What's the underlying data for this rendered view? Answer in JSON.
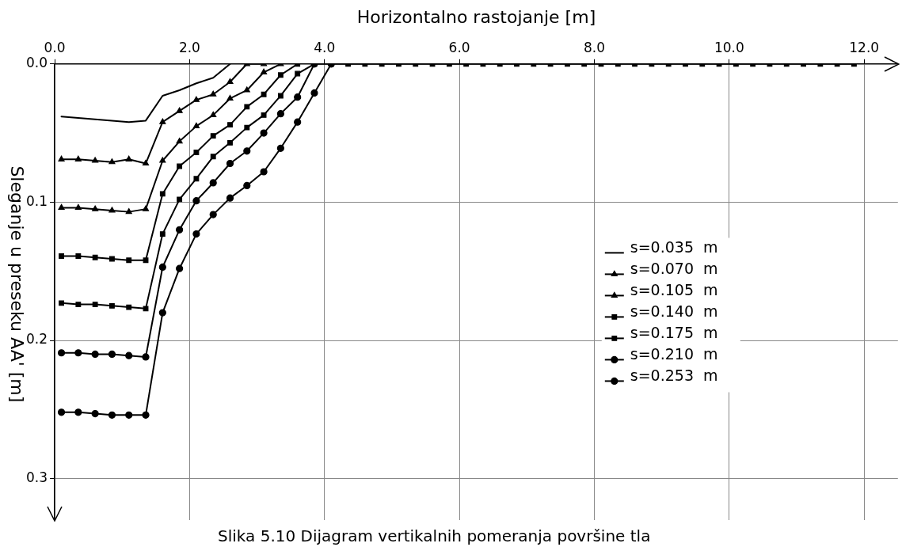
{
  "chart_data": {
    "type": "line",
    "xlabel": "Horizontalno rastojanje [m]",
    "ylabel": "Sleganje u preseku AA' [m]",
    "annotations": [
      "Slika 5.10 Dijagram vertikalnih pomeranja površine tla"
    ],
    "xlim": [
      0,
      12.5
    ],
    "ylim": [
      0.33,
      0
    ],
    "xticks": [
      {
        "value": 0,
        "label": "0.0"
      },
      {
        "value": 2,
        "label": "2.0"
      },
      {
        "value": 4,
        "label": "4.0"
      },
      {
        "value": 6,
        "label": "6.0"
      },
      {
        "value": 8,
        "label": "8.0"
      },
      {
        "value": 10,
        "label": "10.0"
      },
      {
        "value": 12,
        "label": "12.0"
      }
    ],
    "yticks": [
      {
        "value": 0,
        "label": "0.0"
      },
      {
        "value": 0.1,
        "label": "0.1"
      },
      {
        "value": 0.2,
        "label": "0.2"
      },
      {
        "value": 0.3,
        "label": "0.3"
      }
    ],
    "grid": true,
    "legend": "right",
    "line_style": "solid",
    "series": [
      {
        "name": "s=0.035  m",
        "color": "#000000",
        "marker": "none",
        "x": [
          0.1,
          0.35,
          0.6,
          0.85,
          1.1,
          1.35,
          1.6,
          1.85,
          2.1,
          2.35,
          2.6
        ],
        "values": [
          0.038,
          0.039,
          0.04,
          0.041,
          0.042,
          0.041,
          0.023,
          0.019,
          0.014,
          0.01,
          0
        ]
      },
      {
        "name": "s=0.070  m",
        "color": "#000000",
        "marker": "triangle",
        "x": [
          0.1,
          0.35,
          0.6,
          0.85,
          1.1,
          1.35,
          1.6,
          1.85,
          2.1,
          2.35,
          2.6,
          2.85,
          3.1
        ],
        "values": [
          0.069,
          0.069,
          0.07,
          0.071,
          0.069,
          0.072,
          0.042,
          0.034,
          0.026,
          0.022,
          0.013,
          0,
          0
        ]
      },
      {
        "name": "s=0.105  m",
        "color": "#000000",
        "marker": "triangle",
        "x": [
          0.1,
          0.35,
          0.6,
          0.85,
          1.1,
          1.35,
          1.6,
          1.85,
          2.1,
          2.35,
          2.6,
          2.85,
          3.1,
          3.35
        ],
        "values": [
          0.104,
          0.104,
          0.105,
          0.106,
          0.107,
          0.105,
          0.07,
          0.056,
          0.045,
          0.037,
          0.025,
          0.019,
          0.006,
          0
        ]
      },
      {
        "name": "s=0.140  m",
        "color": "#000000",
        "marker": "square",
        "x": [
          0.1,
          0.35,
          0.6,
          0.85,
          1.1,
          1.35,
          1.6,
          1.85,
          2.1,
          2.35,
          2.6,
          2.85,
          3.1,
          3.35,
          3.6
        ],
        "values": [
          0.139,
          0.139,
          0.14,
          0.141,
          0.142,
          0.142,
          0.094,
          0.074,
          0.064,
          0.052,
          0.044,
          0.031,
          0.022,
          0.008,
          0
        ]
      },
      {
        "name": "s=0.175  m",
        "color": "#000000",
        "marker": "square",
        "x": [
          0.1,
          0.35,
          0.6,
          0.85,
          1.1,
          1.35,
          1.6,
          1.85,
          2.1,
          2.35,
          2.6,
          2.85,
          3.1,
          3.35,
          3.6,
          3.85,
          4.1,
          4.35,
          4.6,
          4.85,
          5.1,
          5.35,
          5.6,
          5.85,
          6.1,
          6.35,
          6.6,
          6.85,
          7.1,
          7.35,
          7.6,
          7.85,
          8.1,
          8.35,
          8.6,
          8.85,
          9.1,
          9.35,
          9.6,
          9.85,
          10.1,
          10.35,
          10.6,
          10.85,
          11.1,
          11.35,
          11.6,
          11.85
        ],
        "values": [
          0.173,
          0.174,
          0.174,
          0.175,
          0.176,
          0.177,
          0.123,
          0.098,
          0.083,
          0.067,
          0.057,
          0.046,
          0.037,
          0.023,
          0.007,
          0,
          0,
          0,
          0,
          0,
          0,
          0,
          0,
          0,
          0,
          0,
          0,
          0,
          0,
          0,
          0,
          0,
          0,
          0,
          0,
          0,
          0,
          0,
          0,
          0,
          0,
          0,
          0,
          0,
          0,
          0,
          0,
          0
        ]
      },
      {
        "name": "s=0.210  m",
        "color": "#000000",
        "marker": "circle",
        "x": [
          0.1,
          0.35,
          0.6,
          0.85,
          1.1,
          1.35,
          1.6,
          1.85,
          2.1,
          2.35,
          2.6,
          2.85,
          3.1,
          3.35,
          3.6,
          3.85
        ],
        "values": [
          0.209,
          0.209,
          0.21,
          0.21,
          0.211,
          0.212,
          0.147,
          0.12,
          0.099,
          0.086,
          0.072,
          0.063,
          0.05,
          0.036,
          0.024,
          0
        ]
      },
      {
        "name": "s=0.253  m",
        "color": "#000000",
        "marker": "circle",
        "x": [
          0.1,
          0.35,
          0.6,
          0.85,
          1.1,
          1.35,
          1.6,
          1.85,
          2.1,
          2.35,
          2.6,
          2.85,
          3.1,
          3.35,
          3.6,
          3.85,
          4.1
        ],
        "values": [
          0.252,
          0.252,
          0.253,
          0.254,
          0.254,
          0.254,
          0.18,
          0.148,
          0.123,
          0.109,
          0.097,
          0.088,
          0.078,
          0.061,
          0.042,
          0.021,
          0
        ]
      }
    ]
  }
}
